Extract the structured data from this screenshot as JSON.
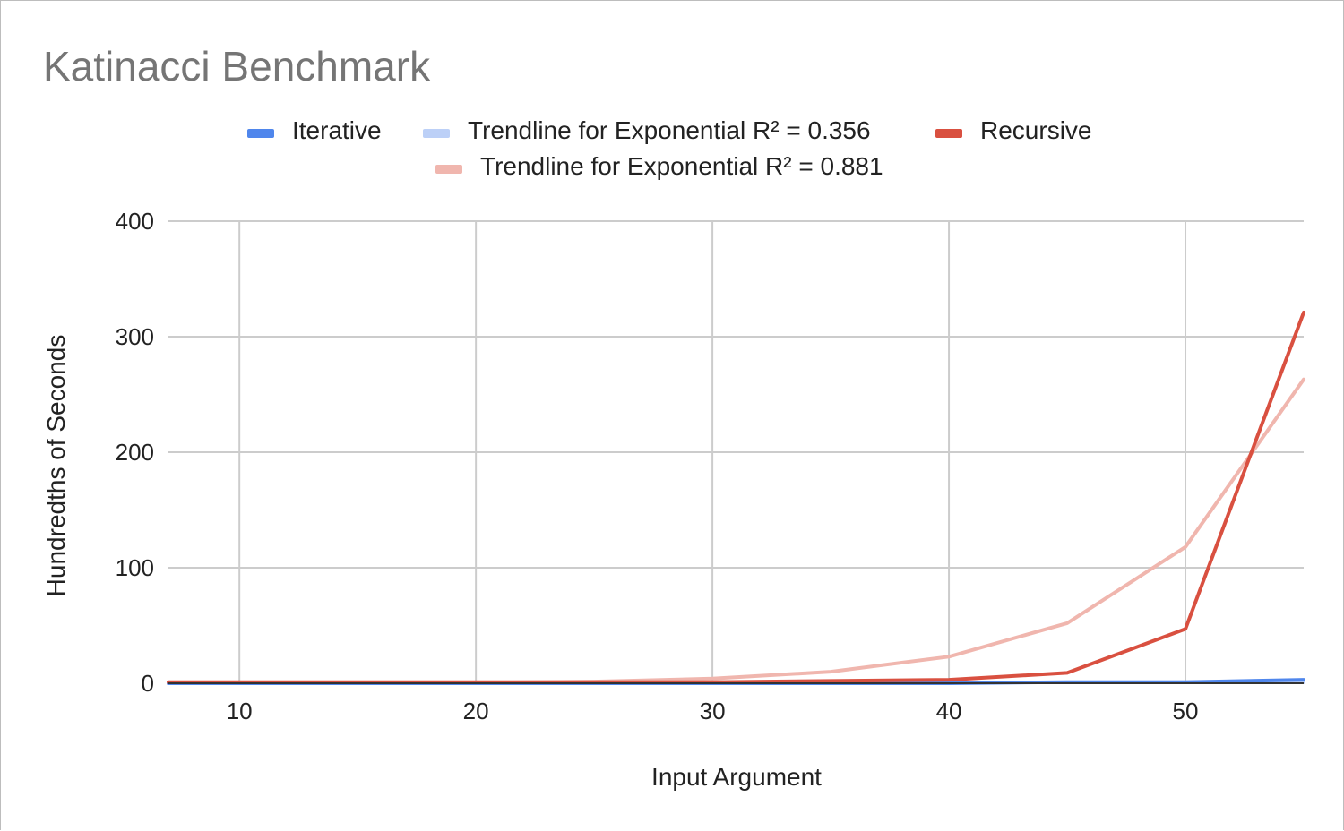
{
  "chart_data": {
    "type": "line",
    "title": "Katinacci Benchmark",
    "xlabel": "Input Argument",
    "ylabel": "Hundredths of Seconds",
    "xlim": [
      7,
      55
    ],
    "ylim": [
      0,
      400
    ],
    "x_ticks": [
      10,
      20,
      30,
      40,
      50
    ],
    "y_ticks": [
      0,
      100,
      200,
      300,
      400
    ],
    "grid": true,
    "legend_position": "top",
    "series": [
      {
        "name": "Iterative",
        "color": "#4f86ec",
        "kind": "line",
        "x": [
          7,
          10,
          15,
          20,
          25,
          30,
          35,
          40,
          45,
          50,
          55
        ],
        "y": [
          0,
          0,
          0,
          0,
          0,
          0,
          0,
          0,
          1,
          1,
          3
        ]
      },
      {
        "name": "Trendline for Exponential R² = 0.356",
        "color": "#bcd0f7",
        "kind": "trendline",
        "x": [
          7,
          10,
          20,
          30,
          40,
          50,
          55
        ],
        "y": [
          0.3,
          0.3,
          0.4,
          0.5,
          0.7,
          0.9,
          1.0
        ]
      },
      {
        "name": "Recursive",
        "color": "#d95040",
        "kind": "line",
        "x": [
          7,
          10,
          15,
          20,
          25,
          30,
          35,
          40,
          45,
          50,
          55
        ],
        "y": [
          1,
          1,
          1,
          1,
          1,
          1,
          2,
          3,
          9,
          47,
          321
        ]
      },
      {
        "name": "Trendline for Exponential R² = 0.881",
        "color": "#f0b6ae",
        "kind": "trendline",
        "x": [
          7,
          10,
          15,
          20,
          25,
          30,
          35,
          40,
          45,
          50,
          55
        ],
        "y": [
          0.03,
          0.06,
          0.2,
          0.5,
          1.5,
          4,
          10,
          23,
          52,
          118,
          263
        ]
      }
    ]
  }
}
